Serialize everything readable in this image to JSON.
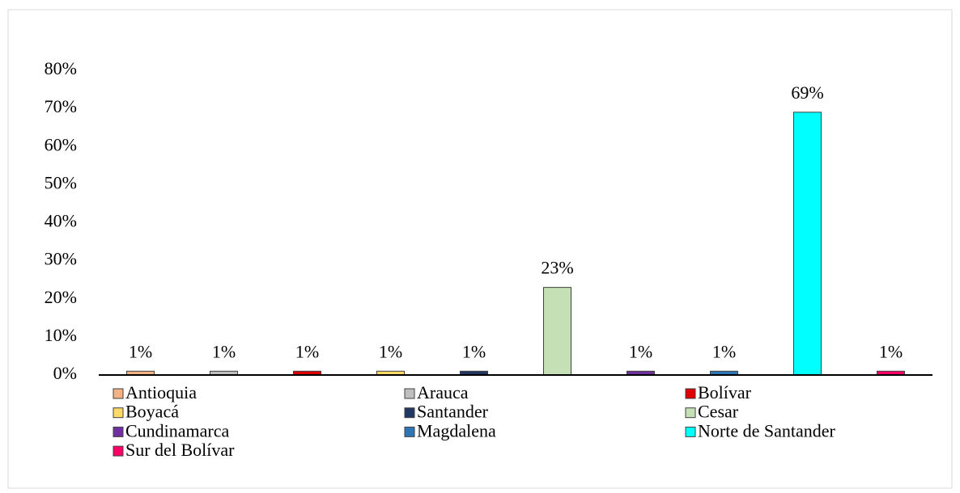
{
  "chart_data": {
    "type": "bar",
    "series": [
      {
        "name": "Antioquia",
        "color": "#f4b183",
        "values": [
          1
        ],
        "value_labels": [
          "1%"
        ]
      },
      {
        "name": "Arauca",
        "color": "#bfbfbf",
        "values": [
          1
        ],
        "value_labels": [
          "1%"
        ]
      },
      {
        "name": "Bolívar",
        "color": "#e00000",
        "values": [
          1
        ],
        "value_labels": [
          "1%"
        ]
      },
      {
        "name": "Boyacá",
        "color": "#ffd966",
        "values": [
          1
        ],
        "value_labels": [
          "1%"
        ]
      },
      {
        "name": "Santander",
        "color": "#203864",
        "values": [
          1
        ],
        "value_labels": [
          "1%"
        ]
      },
      {
        "name": "Cesar",
        "color": "#c5e0b4",
        "values": [
          23
        ],
        "value_labels": [
          "23%"
        ]
      },
      {
        "name": "Cundinamarca",
        "color": "#7030a0",
        "values": [
          1
        ],
        "value_labels": [
          "1%"
        ]
      },
      {
        "name": "Magdalena",
        "color": "#2e75b6",
        "values": [
          1
        ],
        "value_labels": [
          "1%"
        ]
      },
      {
        "name": "Norte de Santander",
        "color": "#00ffff",
        "values": [
          69
        ],
        "value_labels": [
          "69%"
        ]
      },
      {
        "name": "Sur del Bolívar",
        "color": "#ff0066",
        "values": [
          1
        ],
        "value_labels": [
          "1%"
        ]
      }
    ],
    "ylim": [
      0,
      80
    ],
    "yticks": [
      {
        "value": 0,
        "label": "0%"
      },
      {
        "value": 10,
        "label": "10%"
      },
      {
        "value": 20,
        "label": "20%"
      },
      {
        "value": 30,
        "label": "30%"
      },
      {
        "value": 40,
        "label": "40%"
      },
      {
        "value": 50,
        "label": "50%"
      },
      {
        "value": 60,
        "label": "60%"
      },
      {
        "value": 70,
        "label": "70%"
      },
      {
        "value": 80,
        "label": "80%"
      }
    ],
    "legend": "bottom"
  }
}
